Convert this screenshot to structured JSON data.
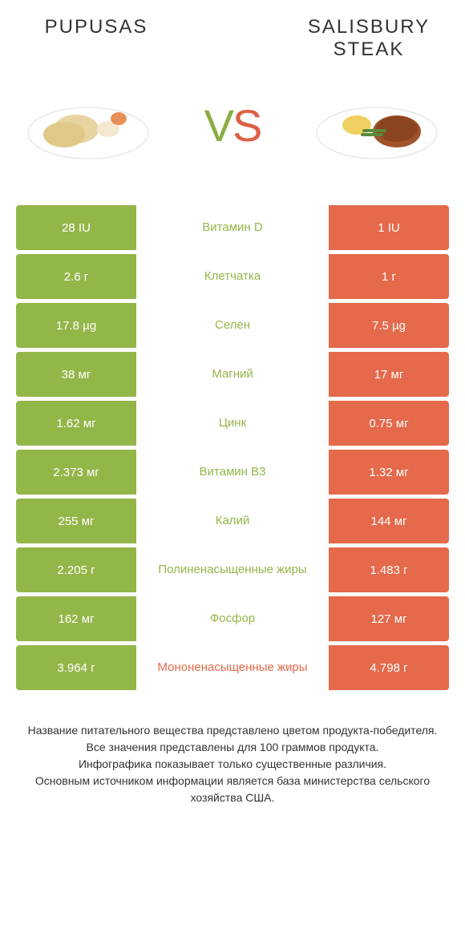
{
  "colors": {
    "green": "#93b648",
    "orange": "#e5694b",
    "text": "#333333",
    "background": "#ffffff"
  },
  "header": {
    "left_title": "PUPUSAS",
    "right_title": "SALISBURY STEAK",
    "vs_v": "V",
    "vs_s": "S"
  },
  "table": {
    "rows": [
      {
        "left": "28 IU",
        "mid": "Витамин D",
        "right": "1 IU",
        "winner": "left"
      },
      {
        "left": "2.6 г",
        "mid": "Клетчатка",
        "right": "1 г",
        "winner": "left"
      },
      {
        "left": "17.8 µg",
        "mid": "Селен",
        "right": "7.5 µg",
        "winner": "left"
      },
      {
        "left": "38 мг",
        "mid": "Магний",
        "right": "17 мг",
        "winner": "left"
      },
      {
        "left": "1.62 мг",
        "mid": "Цинк",
        "right": "0.75 мг",
        "winner": "left"
      },
      {
        "left": "2.373 мг",
        "mid": "Витамин B3",
        "right": "1.32 мг",
        "winner": "left"
      },
      {
        "left": "255 мг",
        "mid": "Калий",
        "right": "144 мг",
        "winner": "left"
      },
      {
        "left": "2.205 г",
        "mid": "Полиненасыщенные жиры",
        "right": "1.483 г",
        "winner": "left"
      },
      {
        "left": "162 мг",
        "mid": "Фосфор",
        "right": "127 мг",
        "winner": "left"
      },
      {
        "left": "3.964 г",
        "mid": "Мононенасыщенные жиры",
        "right": "4.798 г",
        "winner": "right"
      }
    ]
  },
  "footer": {
    "line1": "Название питательного вещества представлено цветом продукта-победителя.",
    "line2": "Все значения представлены для 100 граммов продукта.",
    "line3": "Инфографика показывает только существенные различия.",
    "line4": "Основным источником информации является база министерства сельского хозяйства США."
  }
}
